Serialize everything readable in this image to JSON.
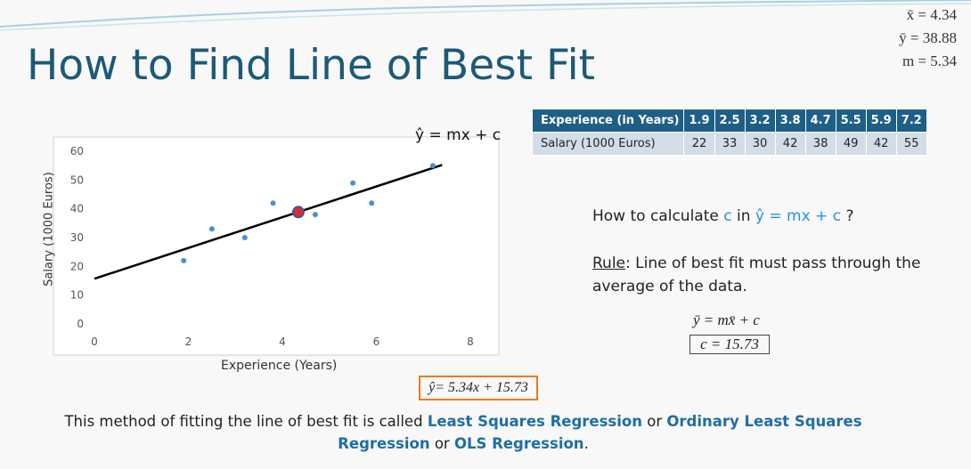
{
  "slide": {
    "title": "How to Find Line of Best Fit",
    "stats": {
      "xbar": "x̄ = 4.34",
      "ybar": "ȳ = 38.88",
      "m": "m = 5.34"
    }
  },
  "chart": {
    "equation_label": "ŷ = mx + c",
    "xlabel": "Experience (Years)",
    "ylabel": "Salary (1000 Euros)"
  },
  "chart_data": {
    "type": "scatter",
    "xlabel": "Experience (Years)",
    "ylabel": "Salary (1000 Euros)",
    "xlim": [
      0,
      8
    ],
    "ylim": [
      0,
      60
    ],
    "x_ticks": [
      "0",
      "2",
      "4",
      "6",
      "8"
    ],
    "y_ticks": [
      "0",
      "10",
      "20",
      "30",
      "40",
      "50",
      "60"
    ],
    "points": [
      {
        "x": 1.9,
        "y": 22
      },
      {
        "x": 2.5,
        "y": 33
      },
      {
        "x": 3.2,
        "y": 30
      },
      {
        "x": 3.8,
        "y": 42
      },
      {
        "x": 4.7,
        "y": 38
      },
      {
        "x": 5.5,
        "y": 49
      },
      {
        "x": 5.9,
        "y": 42
      },
      {
        "x": 7.2,
        "y": 55
      }
    ],
    "mean_point": {
      "x": 4.34,
      "y": 38.88
    },
    "fit_line": {
      "slope": 5.34,
      "intercept": 15.73,
      "x_range": [
        0,
        7.4
      ]
    },
    "grid": false,
    "colors": {
      "points": "#4a8fd0",
      "mean": "#e02828",
      "line": "#000000"
    }
  },
  "table": {
    "row1_label": "Experience (in Years)",
    "row2_label": "Salary (1000 Euros)",
    "experience": [
      "1.9",
      "2.5",
      "3.2",
      "3.8",
      "4.7",
      "5.5",
      "5.9",
      "7.2"
    ],
    "salary": [
      "22",
      "33",
      "30",
      "42",
      "38",
      "49",
      "42",
      "55"
    ]
  },
  "question": {
    "prefix": "How to calculate ",
    "var": "c",
    "mid": " in ",
    "eq": "ŷ = mx + c",
    "suffix": " ?"
  },
  "rule": {
    "label": "Rule",
    "text": ": Line of best fit must pass through the average of the data."
  },
  "formulas": {
    "mean_eq": "ȳ = mx̄ + c",
    "c_value": "c = 15.73",
    "result": "ŷ= 5.34x + 15.73"
  },
  "footer": {
    "part1": "This method of fitting the line of best fit is called ",
    "term1": "Least Squares Regression",
    "part2": " or ",
    "term2": "Ordinary Least Squares Regression",
    "part3": " or ",
    "term3": "OLS Regression",
    "part4": "."
  },
  "colors": {
    "title": "#1c5a76",
    "table_header": "#1e5f86",
    "table_row": "#d3dde8",
    "accent_blue": "#2a8fe6",
    "result_border": "#ec7a1f"
  }
}
